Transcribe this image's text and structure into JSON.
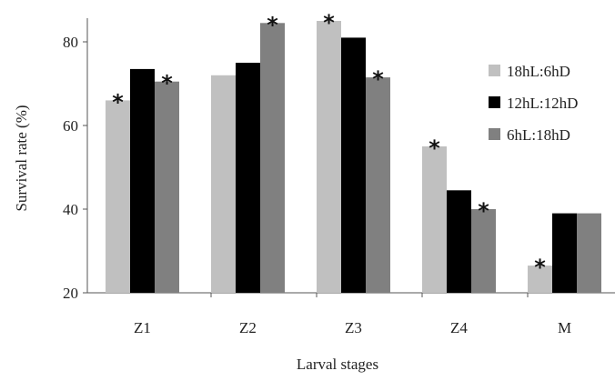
{
  "chart_data": {
    "type": "bar",
    "xlabel": "Larval stages",
    "ylabel": "Survival rate (%)",
    "ylim": [
      20,
      90
    ],
    "yticks": [
      20,
      40,
      60,
      80
    ],
    "categories": [
      "Z1",
      "Z2",
      "Z3",
      "Z4",
      "M"
    ],
    "series": [
      {
        "name": "18hL:6hD",
        "color": "#c0c0c0",
        "values": [
          66,
          72,
          85,
          55,
          26.5
        ],
        "significant": [
          true,
          false,
          true,
          true,
          true
        ]
      },
      {
        "name": "12hL:12hD",
        "color": "#000000",
        "values": [
          73.5,
          75,
          81,
          44.5,
          39
        ],
        "significant": [
          false,
          false,
          false,
          false,
          false
        ]
      },
      {
        "name": "6hL:18hD",
        "color": "#808080",
        "values": [
          70.5,
          84.5,
          71.5,
          40,
          39
        ],
        "significant": [
          true,
          true,
          true,
          true,
          false
        ]
      }
    ],
    "significance_marker": "*",
    "grid": false,
    "legend_position": "right"
  }
}
